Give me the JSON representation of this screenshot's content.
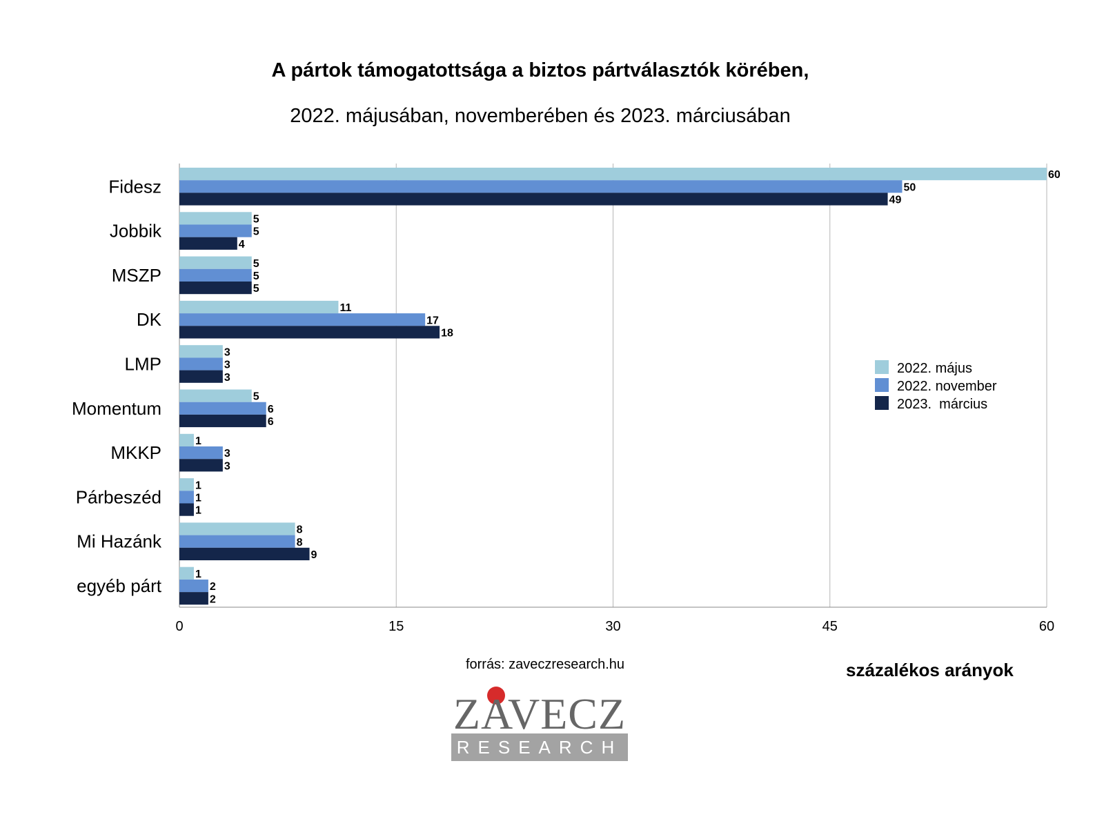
{
  "chart_data": {
    "type": "bar",
    "orientation": "horizontal",
    "title": "A pártok támogatottsága a biztos pártválasztók körében,",
    "subtitle": "2022. májusában, novemberében és 2023. márciusában",
    "categories": [
      "Fidesz",
      "Jobbik",
      "MSZP",
      "DK",
      "LMP",
      "Momentum",
      "MKKP",
      "Párbeszéd",
      "Mi Hazánk",
      "egyéb párt"
    ],
    "series": [
      {
        "name": "2022. május",
        "color": "#9fcddc",
        "values": [
          60,
          5,
          5,
          11,
          3,
          5,
          1,
          1,
          8,
          1
        ]
      },
      {
        "name": "2022. november",
        "color": "#618fd3",
        "values": [
          50,
          5,
          5,
          17,
          3,
          6,
          3,
          1,
          8,
          2
        ]
      },
      {
        "name": "2023.  március",
        "color": "#14264a",
        "values": [
          49,
          4,
          5,
          18,
          3,
          6,
          3,
          1,
          9,
          2
        ]
      }
    ],
    "xlim": [
      0,
      60
    ],
    "xticks": [
      "0",
      "15",
      "30",
      "45",
      "60"
    ],
    "xlabel": "százalékos arányok",
    "grid": true,
    "legend_position": "right"
  },
  "source": "forrás: zaveczresearch.hu",
  "logo": {
    "word": "ZAVECZ",
    "sub": "RESEARCH"
  }
}
